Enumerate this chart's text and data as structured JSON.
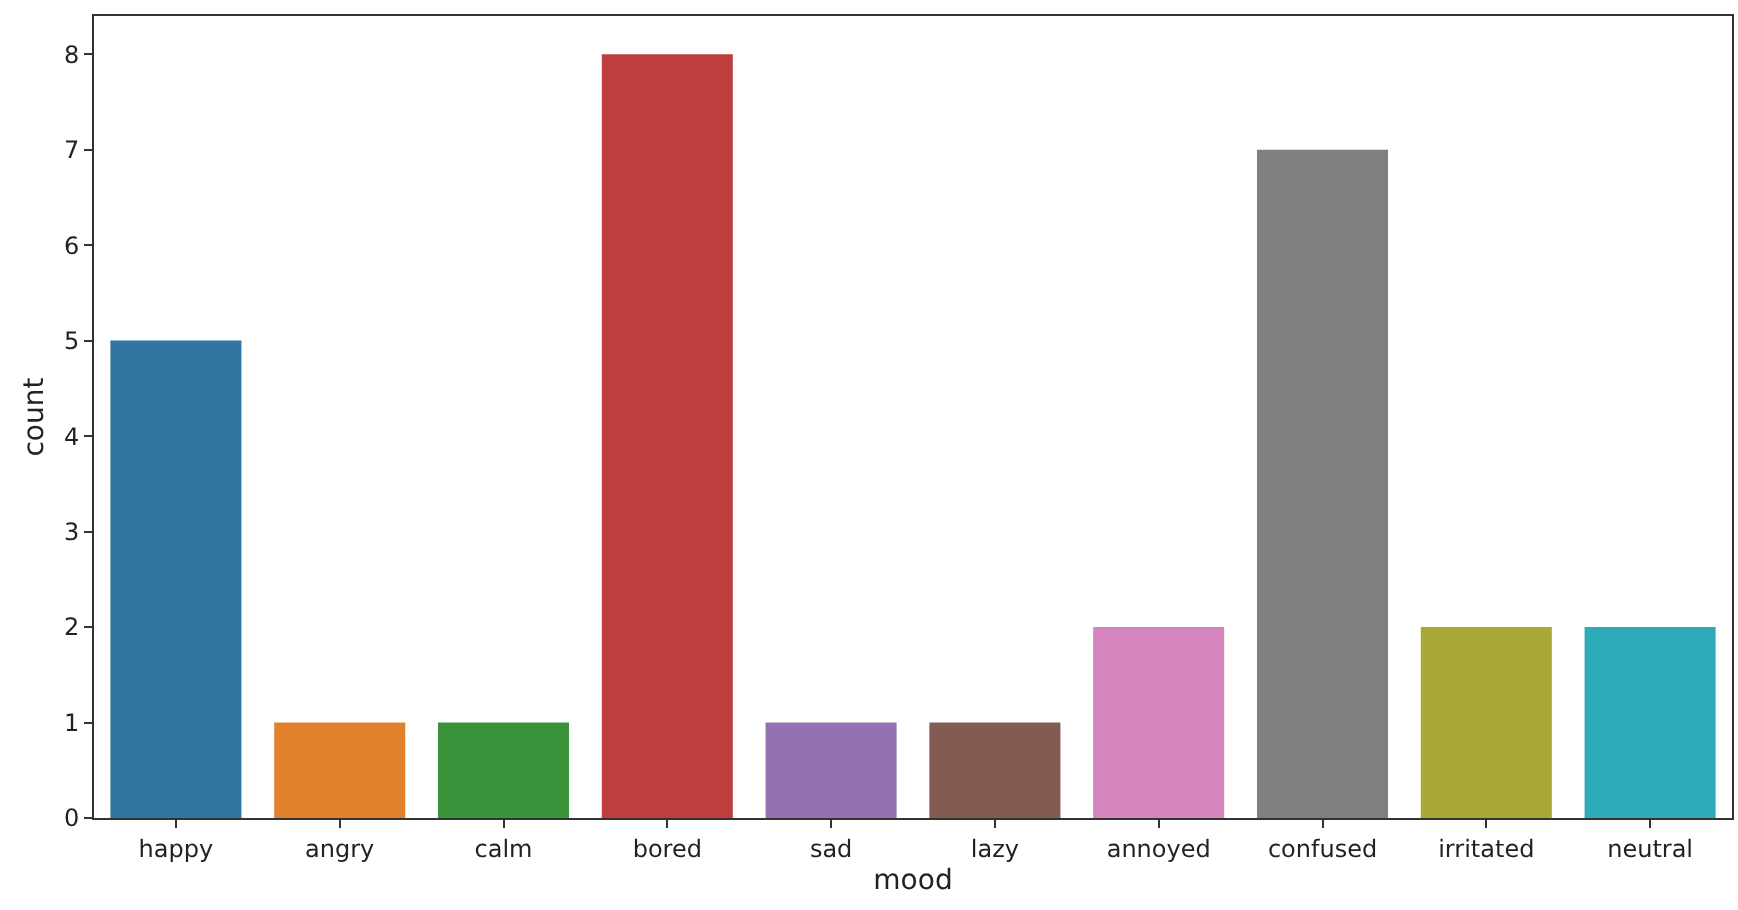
{
  "chart_data": {
    "type": "bar",
    "xlabel": "mood",
    "ylabel": "count",
    "categories": [
      "happy",
      "angry",
      "calm",
      "bored",
      "sad",
      "lazy",
      "annoyed",
      "confused",
      "irritated",
      "neutral"
    ],
    "values": [
      5,
      1,
      1,
      8,
      1,
      1,
      2,
      7,
      2,
      2
    ],
    "colors": [
      "#3274a1",
      "#e1812c",
      "#3a923a",
      "#c03d3e",
      "#9372b2",
      "#845b53",
      "#d684bd",
      "#7f7f7f",
      "#a9aa35",
      "#2eabb8"
    ],
    "ylim": [
      0,
      8.4
    ],
    "yticks": [
      0,
      1,
      2,
      3,
      4,
      5,
      6,
      7,
      8
    ],
    "grid": false
  }
}
